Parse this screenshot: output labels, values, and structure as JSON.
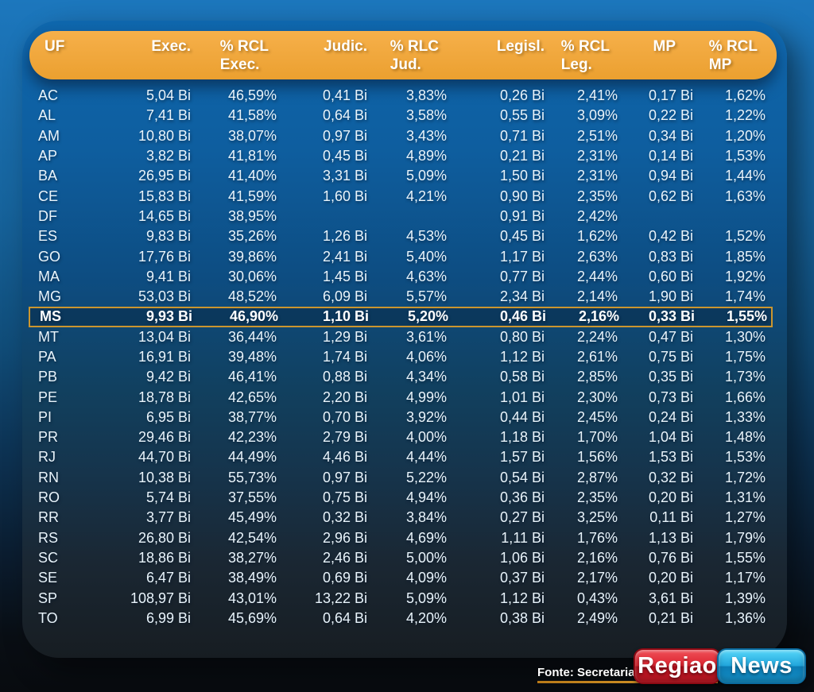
{
  "colors": {
    "header_orange": "#f0a73c",
    "highlight_border": "#cb962f",
    "card_blue_top": "#0f67ad",
    "card_dark_bottom": "#171d22",
    "page_blue_top": "#1c77bd",
    "page_dark_bottom": "#080b0f",
    "table_text": "#e9f4fb",
    "logo_red": "#dc2531",
    "logo_cyan": "#22a6dc",
    "underline_orange": "#d99b2c"
  },
  "footer": {
    "source_label": "Fonte: Secretaria",
    "logo_part1": "Regiao",
    "logo_part2": "News"
  },
  "chart_data": {
    "type": "table",
    "title": "",
    "highlight_row": "MS",
    "headers": {
      "uf": "UF",
      "exec": "Exec.",
      "rcl_exec": [
        "% RCL",
        "Exec."
      ],
      "judic": "Judic.",
      "rlc_jud": [
        "% RLC",
        "Jud."
      ],
      "legisl": "Legisl.",
      "rcl_leg": [
        "% RCL",
        "Leg."
      ],
      "mp": "MP",
      "rcl_mp": [
        "% RCL",
        "MP"
      ]
    },
    "rows": [
      {
        "uf": "AC",
        "exec": "5,04 Bi",
        "pct_exec": "46,59%",
        "judic": "0,41 Bi",
        "pct_jud": "3,83%",
        "legisl": "0,26 Bi",
        "pct_leg": "2,41%",
        "mp": "0,17 Bi",
        "pct_mp": "1,62%",
        "highlight": false
      },
      {
        "uf": "AL",
        "exec": "7,41 Bi",
        "pct_exec": "41,58%",
        "judic": "0,64 Bi",
        "pct_jud": "3,58%",
        "legisl": "0,55 Bi",
        "pct_leg": "3,09%",
        "mp": "0,22 Bi",
        "pct_mp": "1,22%",
        "highlight": false
      },
      {
        "uf": "AM",
        "exec": "10,80 Bi",
        "pct_exec": "38,07%",
        "judic": "0,97 Bi",
        "pct_jud": "3,43%",
        "legisl": "0,71 Bi",
        "pct_leg": "2,51%",
        "mp": "0,34 Bi",
        "pct_mp": "1,20%",
        "highlight": false
      },
      {
        "uf": "AP",
        "exec": "3,82 Bi",
        "pct_exec": "41,81%",
        "judic": "0,45 Bi",
        "pct_jud": "4,89%",
        "legisl": "0,21 Bi",
        "pct_leg": "2,31%",
        "mp": "0,14 Bi",
        "pct_mp": "1,53%",
        "highlight": false
      },
      {
        "uf": "BA",
        "exec": "26,95 Bi",
        "pct_exec": "41,40%",
        "judic": "3,31 Bi",
        "pct_jud": "5,09%",
        "legisl": "1,50 Bi",
        "pct_leg": "2,31%",
        "mp": "0,94 Bi",
        "pct_mp": "1,44%",
        "highlight": false
      },
      {
        "uf": "CE",
        "exec": "15,83 Bi",
        "pct_exec": "41,59%",
        "judic": "1,60 Bi",
        "pct_jud": "4,21%",
        "legisl": "0,90 Bi",
        "pct_leg": "2,35%",
        "mp": "0,62 Bi",
        "pct_mp": "1,63%",
        "highlight": false
      },
      {
        "uf": "DF",
        "exec": "14,65 Bi",
        "pct_exec": "38,95%",
        "judic": "",
        "pct_jud": "",
        "legisl": "0,91 Bi",
        "pct_leg": "2,42%",
        "mp": "",
        "pct_mp": "",
        "highlight": false
      },
      {
        "uf": "ES",
        "exec": "9,83 Bi",
        "pct_exec": "35,26%",
        "judic": "1,26 Bi",
        "pct_jud": "4,53%",
        "legisl": "0,45 Bi",
        "pct_leg": "1,62%",
        "mp": "0,42 Bi",
        "pct_mp": "1,52%",
        "highlight": false
      },
      {
        "uf": "GO",
        "exec": "17,76 Bi",
        "pct_exec": "39,86%",
        "judic": "2,41 Bi",
        "pct_jud": "5,40%",
        "legisl": "1,17 Bi",
        "pct_leg": "2,63%",
        "mp": "0,83 Bi",
        "pct_mp": "1,85%",
        "highlight": false
      },
      {
        "uf": "MA",
        "exec": "9,41 Bi",
        "pct_exec": "30,06%",
        "judic": "1,45 Bi",
        "pct_jud": "4,63%",
        "legisl": "0,77 Bi",
        "pct_leg": "2,44%",
        "mp": "0,60 Bi",
        "pct_mp": "1,92%",
        "highlight": false
      },
      {
        "uf": "MG",
        "exec": "53,03 Bi",
        "pct_exec": "48,52%",
        "judic": "6,09 Bi",
        "pct_jud": "5,57%",
        "legisl": "2,34 Bi",
        "pct_leg": "2,14%",
        "mp": "1,90 Bi",
        "pct_mp": "1,74%",
        "highlight": false
      },
      {
        "uf": "MS",
        "exec": "9,93 Bi",
        "pct_exec": "46,90%",
        "judic": "1,10 Bi",
        "pct_jud": "5,20%",
        "legisl": "0,46 Bi",
        "pct_leg": "2,16%",
        "mp": "0,33 Bi",
        "pct_mp": "1,55%",
        "highlight": true
      },
      {
        "uf": "MT",
        "exec": "13,04 Bi",
        "pct_exec": "36,44%",
        "judic": "1,29 Bi",
        "pct_jud": "3,61%",
        "legisl": "0,80 Bi",
        "pct_leg": "2,24%",
        "mp": "0,47 Bi",
        "pct_mp": "1,30%",
        "highlight": false
      },
      {
        "uf": "PA",
        "exec": "16,91 Bi",
        "pct_exec": "39,48%",
        "judic": "1,74 Bi",
        "pct_jud": "4,06%",
        "legisl": "1,12 Bi",
        "pct_leg": "2,61%",
        "mp": "0,75 Bi",
        "pct_mp": "1,75%",
        "highlight": false
      },
      {
        "uf": "PB",
        "exec": "9,42 Bi",
        "pct_exec": "46,41%",
        "judic": "0,88 Bi",
        "pct_jud": "4,34%",
        "legisl": "0,58 Bi",
        "pct_leg": "2,85%",
        "mp": "0,35 Bi",
        "pct_mp": "1,73%",
        "highlight": false
      },
      {
        "uf": "PE",
        "exec": "18,78 Bi",
        "pct_exec": "42,65%",
        "judic": "2,20 Bi",
        "pct_jud": "4,99%",
        "legisl": "1,01 Bi",
        "pct_leg": "2,30%",
        "mp": "0,73 Bi",
        "pct_mp": "1,66%",
        "highlight": false
      },
      {
        "uf": "PI",
        "exec": "6,95 Bi",
        "pct_exec": "38,77%",
        "judic": "0,70 Bi",
        "pct_jud": "3,92%",
        "legisl": "0,44 Bi",
        "pct_leg": "2,45%",
        "mp": "0,24 Bi",
        "pct_mp": "1,33%",
        "highlight": false
      },
      {
        "uf": "PR",
        "exec": "29,46 Bi",
        "pct_exec": "42,23%",
        "judic": "2,79 Bi",
        "pct_jud": "4,00%",
        "legisl": "1,18 Bi",
        "pct_leg": "1,70%",
        "mp": "1,04 Bi",
        "pct_mp": "1,48%",
        "highlight": false
      },
      {
        "uf": "RJ",
        "exec": "44,70 Bi",
        "pct_exec": "44,49%",
        "judic": "4,46 Bi",
        "pct_jud": "4,44%",
        "legisl": "1,57 Bi",
        "pct_leg": "1,56%",
        "mp": "1,53 Bi",
        "pct_mp": "1,53%",
        "highlight": false
      },
      {
        "uf": "RN",
        "exec": "10,38 Bi",
        "pct_exec": "55,73%",
        "judic": "0,97 Bi",
        "pct_jud": "5,22%",
        "legisl": "0,54 Bi",
        "pct_leg": "2,87%",
        "mp": "0,32 Bi",
        "pct_mp": "1,72%",
        "highlight": false
      },
      {
        "uf": "RO",
        "exec": "5,74 Bi",
        "pct_exec": "37,55%",
        "judic": "0,75 Bi",
        "pct_jud": "4,94%",
        "legisl": "0,36 Bi",
        "pct_leg": "2,35%",
        "mp": "0,20 Bi",
        "pct_mp": "1,31%",
        "highlight": false
      },
      {
        "uf": "RR",
        "exec": "3,77 Bi",
        "pct_exec": "45,49%",
        "judic": "0,32 Bi",
        "pct_jud": "3,84%",
        "legisl": "0,27 Bi",
        "pct_leg": "3,25%",
        "mp": "0,11 Bi",
        "pct_mp": "1,27%",
        "highlight": false
      },
      {
        "uf": "RS",
        "exec": "26,80 Bi",
        "pct_exec": "42,54%",
        "judic": "2,96 Bi",
        "pct_jud": "4,69%",
        "legisl": "1,11 Bi",
        "pct_leg": "1,76%",
        "mp": "1,13 Bi",
        "pct_mp": "1,79%",
        "highlight": false
      },
      {
        "uf": "SC",
        "exec": "18,86 Bi",
        "pct_exec": "38,27%",
        "judic": "2,46 Bi",
        "pct_jud": "5,00%",
        "legisl": "1,06 Bi",
        "pct_leg": "2,16%",
        "mp": "0,76 Bi",
        "pct_mp": "1,55%",
        "highlight": false
      },
      {
        "uf": "SE",
        "exec": "6,47 Bi",
        "pct_exec": "38,49%",
        "judic": "0,69 Bi",
        "pct_jud": "4,09%",
        "legisl": "0,37 Bi",
        "pct_leg": "2,17%",
        "mp": "0,20 Bi",
        "pct_mp": "1,17%",
        "highlight": false
      },
      {
        "uf": "SP",
        "exec": "108,97 Bi",
        "pct_exec": "43,01%",
        "judic": "13,22 Bi",
        "pct_jud": "5,09%",
        "legisl": "1,12 Bi",
        "pct_leg": "0,43%",
        "mp": "3,61 Bi",
        "pct_mp": "1,39%",
        "highlight": false
      },
      {
        "uf": "TO",
        "exec": "6,99 Bi",
        "pct_exec": "45,69%",
        "judic": "0,64 Bi",
        "pct_jud": "4,20%",
        "legisl": "0,38 Bi",
        "pct_leg": "2,49%",
        "mp": "0,21 Bi",
        "pct_mp": "1,36%",
        "highlight": false
      }
    ]
  }
}
